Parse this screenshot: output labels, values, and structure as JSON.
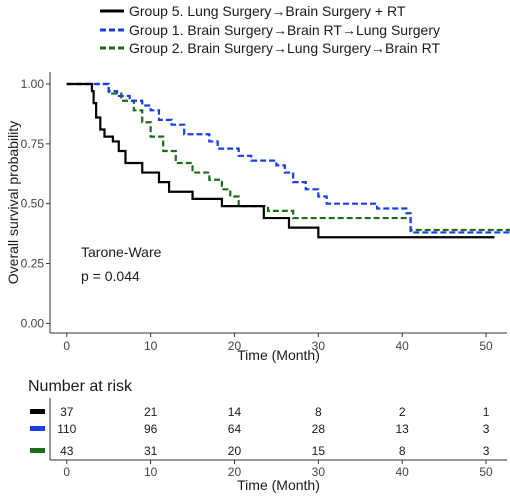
{
  "chart_data": {
    "type": "line",
    "subtype": "kaplan-meier survival curve with number-at-risk table",
    "xlabel": "Time (Month)",
    "ylabel": "Overall survival probability",
    "xlim": [
      -2,
      52.5
    ],
    "ylim": [
      -0.04,
      1.05
    ],
    "xticks": [
      0,
      10,
      20,
      30,
      40,
      50
    ],
    "yticks": [
      0.0,
      0.25,
      0.5,
      0.75,
      1.0
    ],
    "ytick_labels": [
      "0.00",
      "0.25",
      "0.50",
      "0.75",
      "1.00"
    ],
    "grid": false,
    "legend_position": "top",
    "annotation": {
      "test": "Tarone-Ware",
      "pvalue": "p = 0.044"
    },
    "series": [
      {
        "name": "Group 5. Lung Surgery→Brain Surgery + RT",
        "color": "#000000",
        "dash": "solid",
        "steps": [
          [
            0,
            1.0
          ],
          [
            2.8,
            1.0
          ],
          [
            3.0,
            0.97
          ],
          [
            3.2,
            0.92
          ],
          [
            3.5,
            0.86
          ],
          [
            4.0,
            0.81
          ],
          [
            4.5,
            0.78
          ],
          [
            5.5,
            0.76
          ],
          [
            6.2,
            0.72
          ],
          [
            7.0,
            0.67
          ],
          [
            9.0,
            0.63
          ],
          [
            11.0,
            0.59
          ],
          [
            12.2,
            0.55
          ],
          [
            15.0,
            0.52
          ],
          [
            18.5,
            0.49
          ],
          [
            23.5,
            0.44
          ],
          [
            26.5,
            0.4
          ],
          [
            30.0,
            0.36
          ],
          [
            51.0,
            0.36
          ]
        ]
      },
      {
        "name": "Group 1. Brain Surgery→Brain RT→Lung Surgery",
        "color": "#1a3ee6",
        "dash": "dashed",
        "steps": [
          [
            0,
            1.0
          ],
          [
            4.5,
            1.0
          ],
          [
            5.0,
            0.97
          ],
          [
            6.0,
            0.95
          ],
          [
            7.5,
            0.93
          ],
          [
            9.0,
            0.91
          ],
          [
            10.0,
            0.89
          ],
          [
            11.0,
            0.85
          ],
          [
            12.5,
            0.83
          ],
          [
            14.0,
            0.79
          ],
          [
            17.0,
            0.76
          ],
          [
            18.0,
            0.73
          ],
          [
            20.5,
            0.7
          ],
          [
            22.0,
            0.68
          ],
          [
            25.0,
            0.66
          ],
          [
            26.0,
            0.63
          ],
          [
            27.0,
            0.59
          ],
          [
            28.5,
            0.56
          ],
          [
            30.0,
            0.53
          ],
          [
            31.0,
            0.5
          ],
          [
            37.0,
            0.48
          ],
          [
            40.5,
            0.46
          ],
          [
            41.0,
            0.38
          ],
          [
            53.0,
            0.38
          ]
        ]
      },
      {
        "name": "Group 2. Brain Surgery→Lung Surgery→Brain RT",
        "color": "#1f6b1c",
        "dash": "dashed",
        "steps": [
          [
            0,
            1.0
          ],
          [
            4.0,
            1.0
          ],
          [
            5.0,
            0.96
          ],
          [
            6.5,
            0.93
          ],
          [
            8.0,
            0.89
          ],
          [
            9.0,
            0.84
          ],
          [
            10.0,
            0.78
          ],
          [
            11.5,
            0.72
          ],
          [
            13.0,
            0.67
          ],
          [
            15.0,
            0.63
          ],
          [
            17.0,
            0.6
          ],
          [
            18.5,
            0.56
          ],
          [
            19.5,
            0.53
          ],
          [
            20.5,
            0.49
          ],
          [
            24.0,
            0.47
          ],
          [
            27.0,
            0.44
          ],
          [
            40.0,
            0.44
          ],
          [
            41.0,
            0.39
          ],
          [
            53.0,
            0.39
          ]
        ]
      }
    ],
    "risk_table": {
      "title": "Number at risk",
      "times": [
        0,
        10,
        20,
        30,
        40,
        50
      ],
      "rows": [
        {
          "color": "#000000",
          "values": [
            37,
            21,
            14,
            8,
            2,
            1
          ]
        },
        {
          "color": "#1a3ee6",
          "values": [
            110,
            96,
            64,
            28,
            13,
            3
          ]
        },
        {
          "color": "#1f6b1c",
          "values": [
            43,
            31,
            20,
            15,
            8,
            3
          ]
        }
      ]
    }
  }
}
